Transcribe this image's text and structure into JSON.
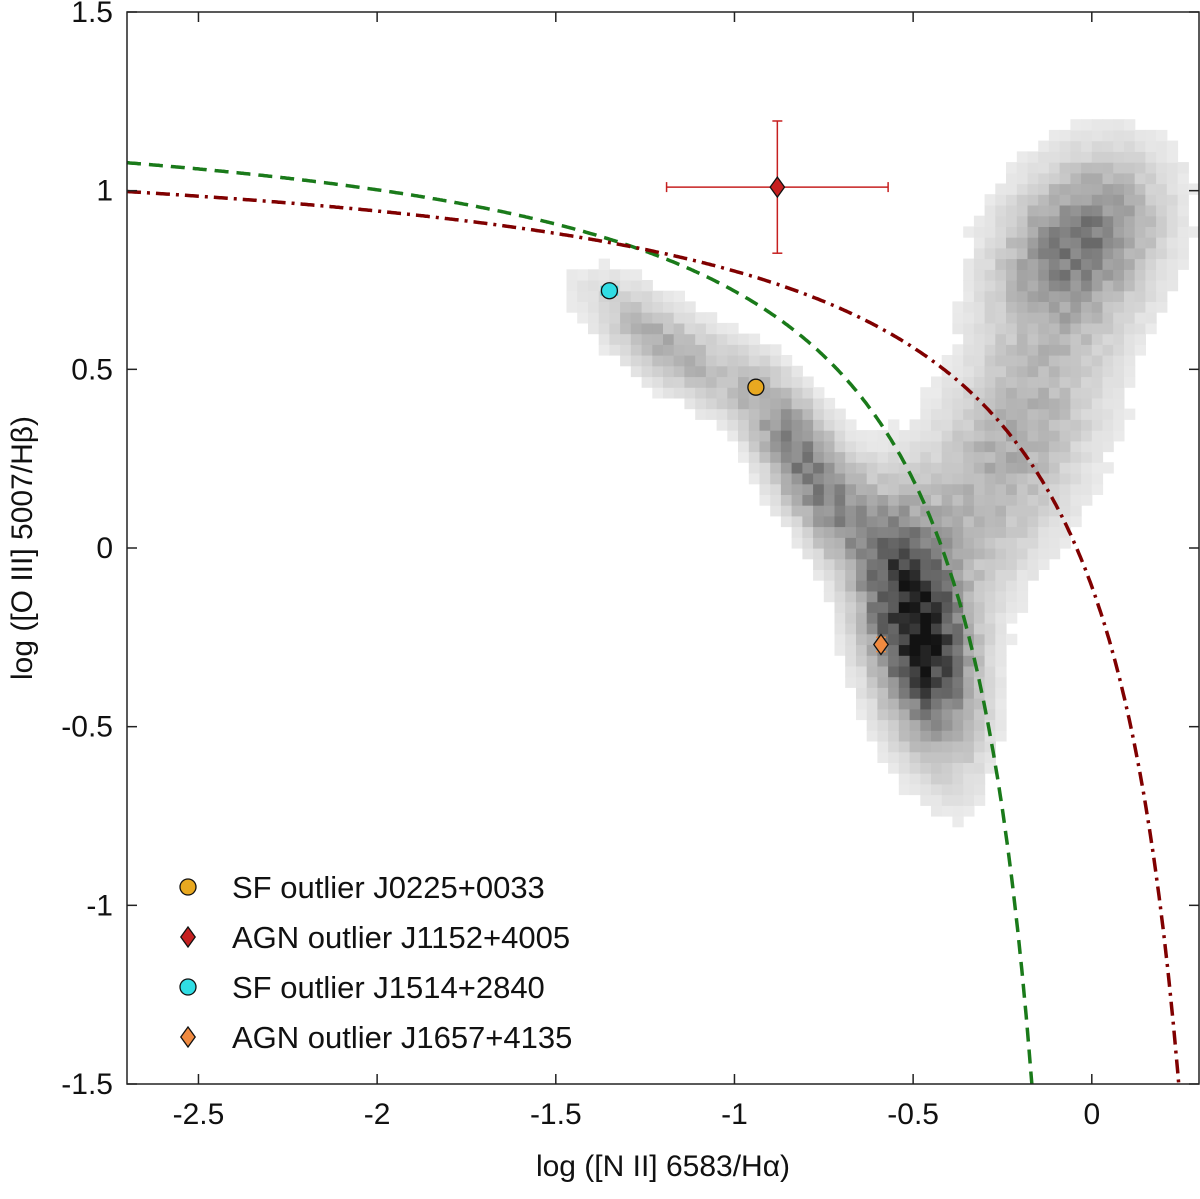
{
  "chart_data": {
    "type": "scatter",
    "title": "",
    "xlabel": "log ([N II] 6583/Hα)",
    "ylabel": "log ([O III] 5007/Hβ)",
    "xlim": [
      -2.7,
      0.3
    ],
    "ylim": [
      -1.5,
      1.5
    ],
    "xticks": [
      -2.5,
      -2,
      -1.5,
      -1,
      -0.5,
      0
    ],
    "yticks": [
      -1.5,
      -1,
      -0.5,
      0,
      0.5,
      1,
      1.5
    ],
    "xtick_labels": [
      "-2.5",
      "-2",
      "-1.5",
      "-1",
      "-0.5",
      "0"
    ],
    "ytick_labels": [
      "-1.5",
      "-1",
      "-0.5",
      "0",
      "0.5",
      "1",
      "1.5"
    ],
    "grid": false,
    "legend_position": "bottom-left",
    "background": {
      "type": "heatmap",
      "colormap": "gray-reversed",
      "bin_size": 0.03,
      "description_components": [
        {
          "x": -0.5,
          "y": -0.25,
          "sx": 0.1,
          "sy": 0.2,
          "w": 1.0,
          "corr_slope": -0.9
        },
        {
          "x": -0.8,
          "y": 0.2,
          "sx": 0.12,
          "sy": 0.12,
          "w": 0.6,
          "corr_slope": -1.1
        },
        {
          "x": -1.2,
          "y": 0.55,
          "sx": 0.15,
          "sy": 0.08,
          "w": 0.35,
          "corr_slope": -0.6
        },
        {
          "x": -0.05,
          "y": 0.85,
          "sx": 0.15,
          "sy": 0.15,
          "w": 0.55,
          "corr_slope": 0.3
        },
        {
          "x": -0.25,
          "y": 0.25,
          "sx": 0.2,
          "sy": 0.25,
          "w": 0.35,
          "corr_slope": 1.0
        }
      ]
    },
    "curves": [
      {
        "style": "dashed",
        "color": "#1a7a1a",
        "x_asymptote": 0.05,
        "coef": 0.61,
        "offset": 1.3
      },
      {
        "style": "dashdot",
        "color": "#800000",
        "x_asymptote": 0.47,
        "coef": 0.61,
        "offset": 1.19
      }
    ],
    "series": [
      {
        "name": "SF outlier J0225+0033",
        "marker": "circle",
        "color": "#e8a820",
        "x": -0.94,
        "y": 0.45,
        "xerr": 0.0,
        "yerr": 0.02
      },
      {
        "name": "AGN outlier J1152+4005",
        "marker": "diamond",
        "color": "#c62020",
        "x": -0.88,
        "y": 1.01,
        "xerr": 0.62,
        "yerr": 0.37
      },
      {
        "name": "SF outlier J1514+2840",
        "marker": "circle",
        "color": "#30dde4",
        "x": -1.35,
        "y": 0.72,
        "xerr": 0.045,
        "yerr": 0.015
      },
      {
        "name": "AGN outlier J1657+4135",
        "marker": "diamond",
        "color": "#f08a40",
        "x": -0.59,
        "y": -0.27,
        "xerr": 0.0,
        "yerr": 0.04
      }
    ]
  }
}
